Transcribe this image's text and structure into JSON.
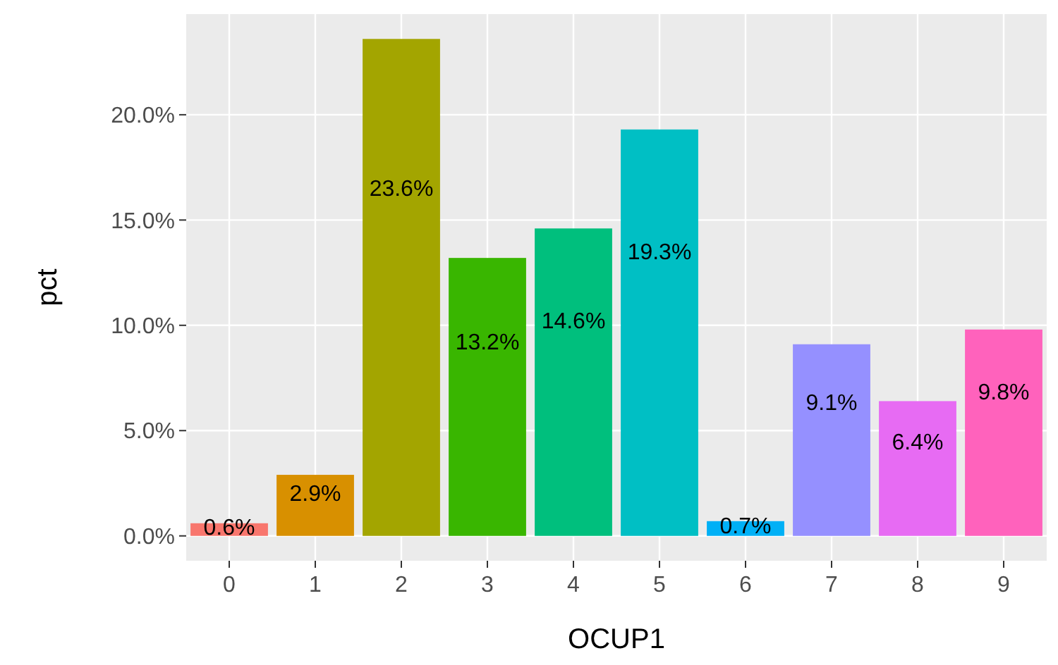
{
  "chart_data": {
    "type": "bar",
    "xlabel": "OCUP1",
    "ylabel": "pct",
    "categories": [
      "0",
      "1",
      "2",
      "3",
      "4",
      "5",
      "6",
      "7",
      "8",
      "9"
    ],
    "values": [
      0.6,
      2.9,
      23.6,
      13.2,
      14.6,
      19.3,
      0.7,
      9.1,
      6.4,
      9.8
    ],
    "colors": [
      "#f8766d",
      "#d89000",
      "#a3a500",
      "#39b600",
      "#00bf7d",
      "#00bfc4",
      "#00b0f6",
      "#9590ff",
      "#e76bf3",
      "#ff62bc"
    ],
    "value_labels": [
      "0.6%",
      "2.9%",
      "23.6%",
      "13.2%",
      "14.6%",
      "19.3%",
      "0.7%",
      "9.1%",
      "6.4%",
      "9.8%"
    ],
    "ylim": [
      -1.18,
      24.78
    ],
    "yticks": [
      {
        "value": 0,
        "label": "0.0%"
      },
      {
        "value": 5,
        "label": "5.0%"
      },
      {
        "value": 10,
        "label": "10.0%"
      },
      {
        "value": 15,
        "label": "15.0%"
      },
      {
        "value": 20,
        "label": "20.0%"
      }
    ],
    "grid": true
  }
}
